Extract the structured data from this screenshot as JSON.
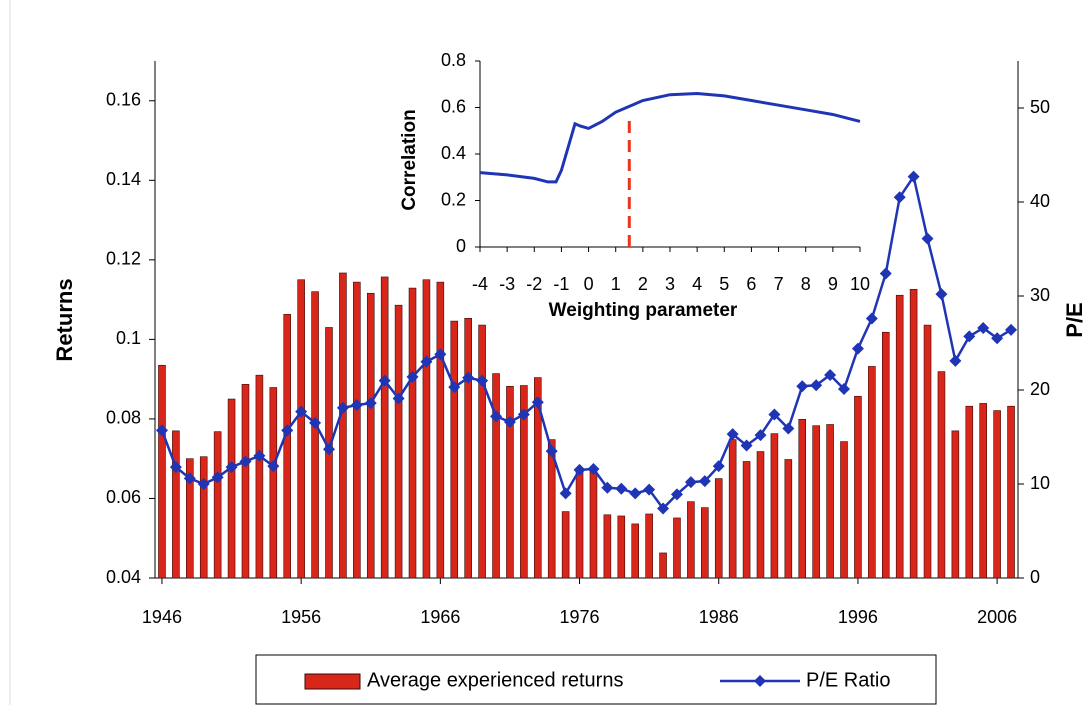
{
  "chart_data": [
    {
      "type": "bar",
      "x": [
        1946,
        1947,
        1948,
        1949,
        1950,
        1951,
        1952,
        1953,
        1954,
        1955,
        1956,
        1957,
        1958,
        1959,
        1960,
        1961,
        1962,
        1963,
        1964,
        1965,
        1966,
        1967,
        1968,
        1969,
        1970,
        1971,
        1972,
        1973,
        1974,
        1975,
        1976,
        1977,
        1978,
        1979,
        1980,
        1981,
        1982,
        1983,
        1984,
        1985,
        1986,
        1987,
        1988,
        1989,
        1990,
        1991,
        1992,
        1993,
        1994,
        1995,
        1996,
        1997,
        1998,
        1999,
        2000,
        2001,
        2002,
        2003,
        2004,
        2005,
        2006,
        2007
      ],
      "y_label": "Returns",
      "y2_label": "P/E",
      "series": [
        {
          "name": "Average experienced returns",
          "color": "#d8261a",
          "values": [
            0.0935,
            0.077,
            0.07,
            0.0705,
            0.0768,
            0.085,
            0.0887,
            0.091,
            0.0879,
            0.1063,
            0.115,
            0.112,
            0.103,
            0.1167,
            0.1144,
            0.1116,
            0.1157,
            0.1086,
            0.1129,
            0.115,
            0.1144,
            0.1046,
            0.1053,
            0.1036,
            0.0914,
            0.0882,
            0.0884,
            0.0904,
            0.0748,
            0.0567,
            0.0672,
            0.0672,
            0.0559,
            0.0556,
            0.0536,
            0.0561,
            0.0463,
            0.0551,
            0.0592,
            0.0577,
            0.065,
            0.0748,
            0.0693,
            0.0718,
            0.0763,
            0.0698,
            0.0799,
            0.0783,
            0.0786,
            0.0743,
            0.0857,
            0.0932,
            0.1018,
            0.1111,
            0.1126,
            0.1036,
            0.0919,
            0.077,
            0.0832,
            0.0839,
            0.0821,
            0.0832
          ]
        },
        {
          "name": "P/E Ratio",
          "color": "#1f35b5",
          "type": "line",
          "axis": "y2",
          "values": [
            15.7,
            11.8,
            10.6,
            10.0,
            10.7,
            11.8,
            12.4,
            13.0,
            11.9,
            15.7,
            17.7,
            16.5,
            13.7,
            18.1,
            18.4,
            18.6,
            21.0,
            19.1,
            21.4,
            23.0,
            23.8,
            20.3,
            21.3,
            21.0,
            17.2,
            16.6,
            17.4,
            18.7,
            13.5,
            9.0,
            11.5,
            11.6,
            9.6,
            9.5,
            9.0,
            9.4,
            7.4,
            8.9,
            10.2,
            10.3,
            11.9,
            15.3,
            14.1,
            15.2,
            17.4,
            15.9,
            20.4,
            20.5,
            21.6,
            20.1,
            24.4,
            27.6,
            32.4,
            40.5,
            42.7,
            36.1,
            30.2,
            23.1,
            25.7,
            26.6,
            25.5,
            26.4
          ]
        }
      ],
      "xlim": [
        1945.5,
        2007.5
      ],
      "xticks": [
        1946,
        1956,
        1966,
        1976,
        1986,
        1996,
        2006
      ],
      "ylim": [
        0.04,
        0.17
      ],
      "yticks": [
        0.04,
        0.06,
        0.08,
        0.1,
        0.12,
        0.14,
        0.16
      ],
      "y2lim": [
        0,
        55
      ],
      "y2ticks": [
        0,
        10,
        20,
        30,
        40,
        50
      ]
    },
    {
      "type": "line",
      "x": [
        -4,
        -3,
        -2,
        -1.5,
        -1.2,
        -1,
        -0.7,
        -0.5,
        -0.3,
        0,
        0.5,
        1,
        2,
        3,
        4,
        5,
        6,
        7,
        8,
        9,
        10
      ],
      "values": [
        0.32,
        0.31,
        0.295,
        0.28,
        0.28,
        0.33,
        0.45,
        0.53,
        0.52,
        0.51,
        0.54,
        0.58,
        0.63,
        0.655,
        0.66,
        0.65,
        0.63,
        0.61,
        0.59,
        0.57,
        0.54
      ],
      "color": "#1f35b5",
      "reference_line": 1.5,
      "reference_color": "#e8361c",
      "x_label": "Weighting parameter",
      "y_label": "Correlation",
      "xlim": [
        -4,
        10
      ],
      "xticks": [
        -4,
        -3,
        -2,
        -1,
        0,
        1,
        2,
        3,
        4,
        5,
        6,
        7,
        8,
        9,
        10
      ],
      "ylim": [
        0,
        0.8
      ],
      "yticks": [
        0,
        0.2,
        0.4,
        0.6,
        0.8
      ]
    }
  ]
}
